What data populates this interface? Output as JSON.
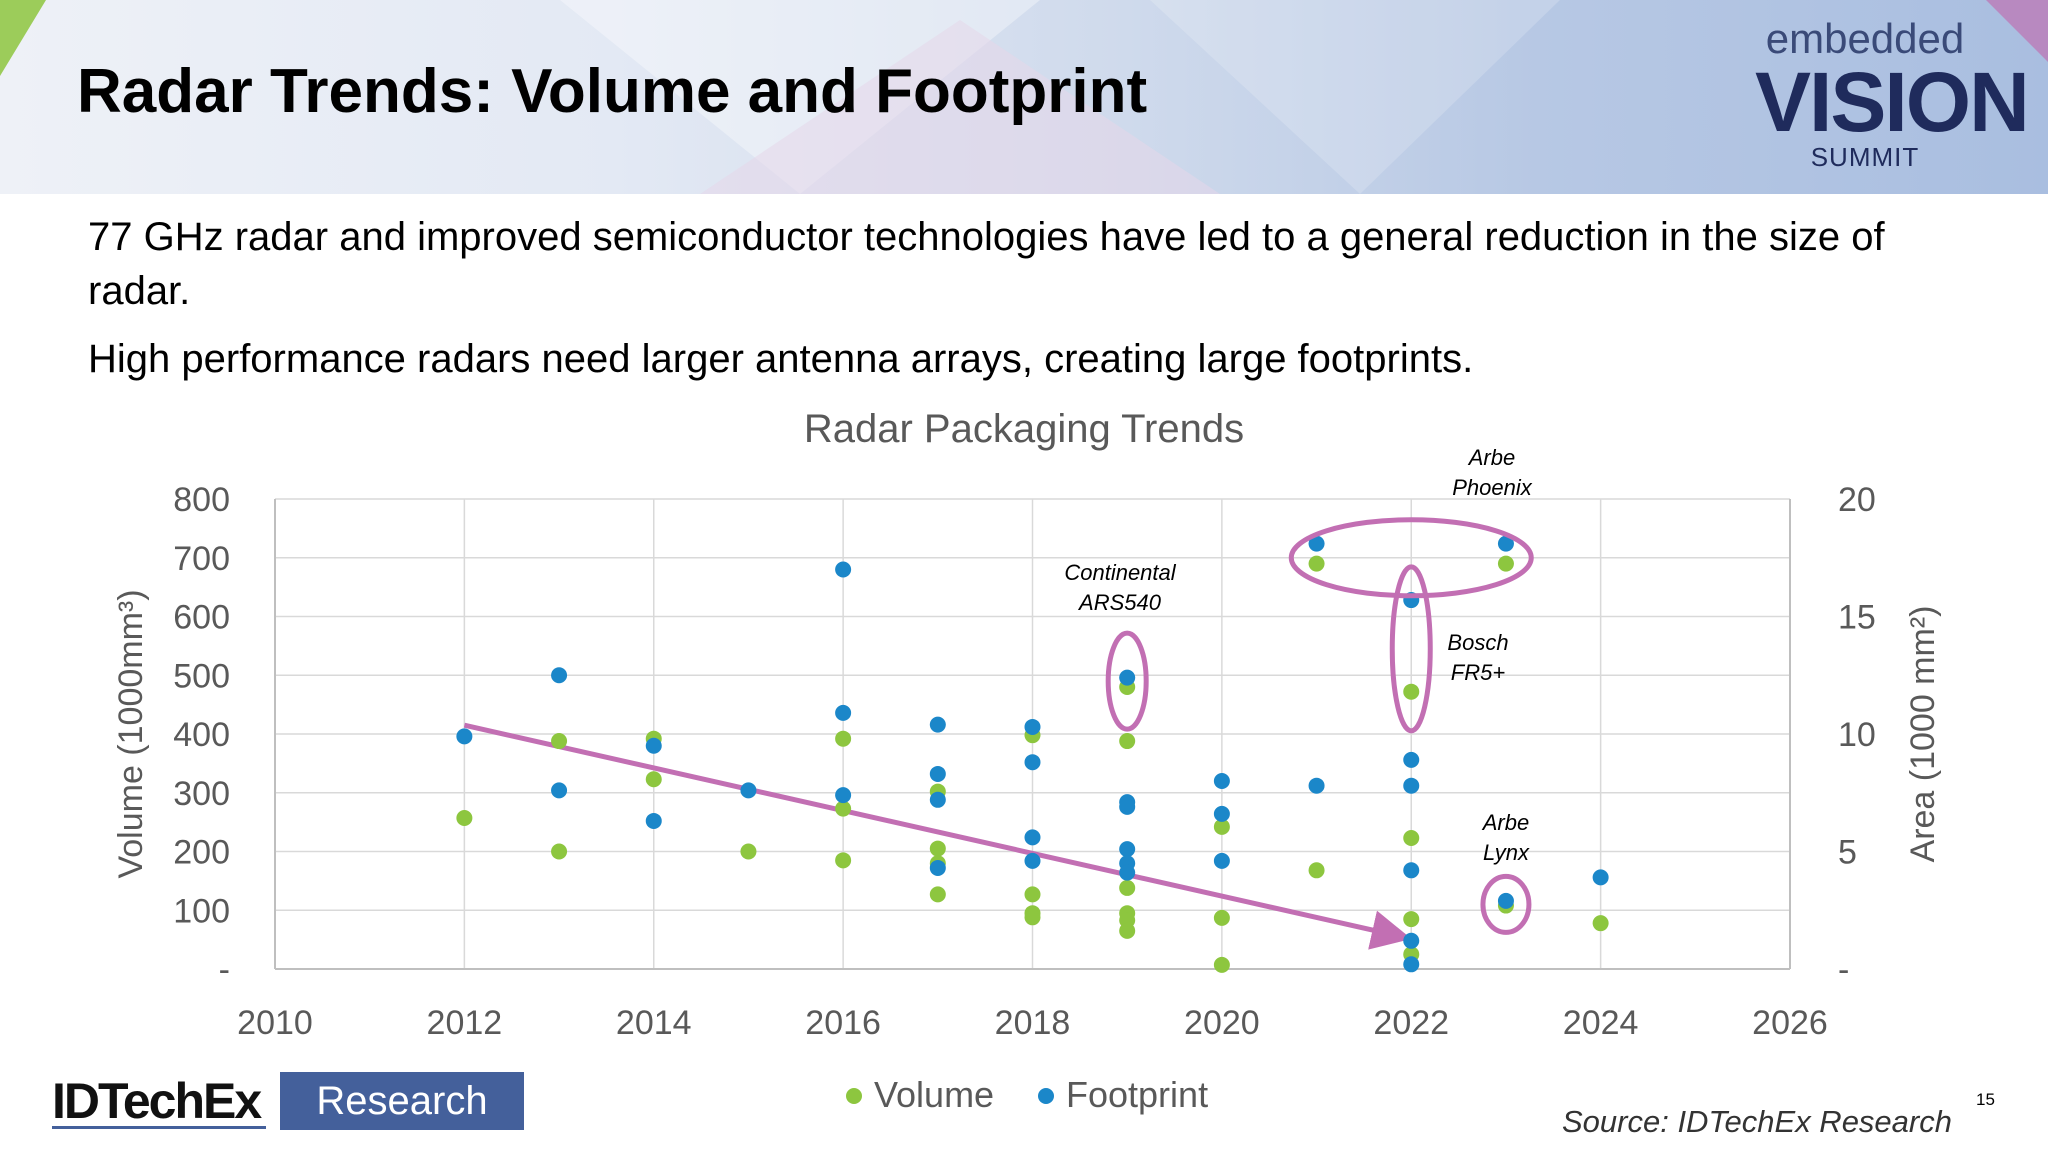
{
  "slide": {
    "title": "Radar Trends: Volume and Footprint",
    "bullets": [
      "77 GHz radar and improved semiconductor technologies have led to a general reduction in the size of radar.",
      "High performance radars need larger antenna arrays, creating large footprints."
    ],
    "logo": {
      "line1": "embedded",
      "line2": "VISION",
      "line3": "SUMMIT"
    },
    "footer_logo": {
      "left": "IDTechEx",
      "right": "Research"
    },
    "source": "Source: IDTechEx Research",
    "page_number": "15"
  },
  "colors": {
    "volume": "#8dc63f",
    "footprint": "#1b87c9",
    "annotation": "#c26fb3",
    "grid": "#d9d9d9",
    "axis_text": "#595959"
  },
  "chart_data": {
    "type": "scatter",
    "title": "Radar Packaging Trends",
    "xlabel": "",
    "ylabel": "Volume (1000mm³)",
    "y2label": "Area (1000 mm²)",
    "xlim": [
      2010,
      2026
    ],
    "x_ticks": [
      "2010",
      "2012",
      "2014",
      "2016",
      "2018",
      "2020",
      "2022",
      "2024",
      "2026"
    ],
    "ylim": [
      0,
      800
    ],
    "y_ticks": [
      "-",
      "100",
      "200",
      "300",
      "400",
      "500",
      "600",
      "700",
      "800"
    ],
    "y2lim": [
      0,
      20
    ],
    "y2_ticks": [
      "-",
      "5",
      "10",
      "15",
      "20"
    ],
    "grid": true,
    "legend_position": "bottom",
    "series": [
      {
        "name": "Volume",
        "axis": "left",
        "points": [
          [
            2012,
            257
          ],
          [
            2013,
            388
          ],
          [
            2013,
            200
          ],
          [
            2014,
            392
          ],
          [
            2014,
            323
          ],
          [
            2015,
            200
          ],
          [
            2016,
            392
          ],
          [
            2016,
            273
          ],
          [
            2016,
            185
          ],
          [
            2017,
            302
          ],
          [
            2017,
            205
          ],
          [
            2017,
            180
          ],
          [
            2017,
            127
          ],
          [
            2018,
            398
          ],
          [
            2018,
            127
          ],
          [
            2018,
            95
          ],
          [
            2018,
            88
          ],
          [
            2019,
            480
          ],
          [
            2019,
            388
          ],
          [
            2019,
            138
          ],
          [
            2019,
            95
          ],
          [
            2019,
            83
          ],
          [
            2019,
            65
          ],
          [
            2020,
            242
          ],
          [
            2020,
            87
          ],
          [
            2020,
            7
          ],
          [
            2021,
            690
          ],
          [
            2021,
            168
          ],
          [
            2022,
            472
          ],
          [
            2022,
            223
          ],
          [
            2022,
            85
          ],
          [
            2022,
            25
          ],
          [
            2023,
            690
          ],
          [
            2023,
            108
          ],
          [
            2024,
            78
          ]
        ]
      },
      {
        "name": "Footprint",
        "axis": "right",
        "points": [
          [
            2012,
            9.9
          ],
          [
            2013,
            12.5
          ],
          [
            2013,
            7.6
          ],
          [
            2014,
            9.5
          ],
          [
            2014,
            6.3
          ],
          [
            2015,
            7.6
          ],
          [
            2016,
            17.0
          ],
          [
            2016,
            10.9
          ],
          [
            2016,
            7.4
          ],
          [
            2017,
            10.4
          ],
          [
            2017,
            8.3
          ],
          [
            2017,
            7.2
          ],
          [
            2017,
            4.3
          ],
          [
            2018,
            10.3
          ],
          [
            2018,
            8.8
          ],
          [
            2018,
            5.6
          ],
          [
            2018,
            4.6
          ],
          [
            2019,
            12.4
          ],
          [
            2019,
            7.1
          ],
          [
            2019,
            6.9
          ],
          [
            2019,
            5.1
          ],
          [
            2019,
            4.5
          ],
          [
            2019,
            4.1
          ],
          [
            2020,
            8.0
          ],
          [
            2020,
            6.6
          ],
          [
            2020,
            4.6
          ],
          [
            2021,
            18.1
          ],
          [
            2021,
            7.8
          ],
          [
            2022,
            15.7
          ],
          [
            2022,
            8.9
          ],
          [
            2022,
            7.8
          ],
          [
            2022,
            4.2
          ],
          [
            2022,
            1.2
          ],
          [
            2022,
            0.2
          ],
          [
            2023,
            18.1
          ],
          [
            2023,
            2.9
          ],
          [
            2024,
            3.9
          ]
        ]
      }
    ],
    "annotations": [
      {
        "label_lines": [
          "Arbe",
          "Phoenix"
        ],
        "target": "ellipse around 2021–2023 near 700"
      },
      {
        "label_lines": [
          "Continental",
          "ARS540"
        ],
        "target": "ellipse around 2019 near 490"
      },
      {
        "label_lines": [
          "Bosch",
          "FR5+"
        ],
        "target": "ellipse around 2022 from 470 to 630"
      },
      {
        "label_lines": [
          "Arbe",
          "Lynx"
        ],
        "target": "ellipse around 2023 near 110"
      }
    ],
    "trend_arrow": {
      "from": [
        2012,
        415
      ],
      "to": [
        2021.9,
        55
      ]
    }
  }
}
